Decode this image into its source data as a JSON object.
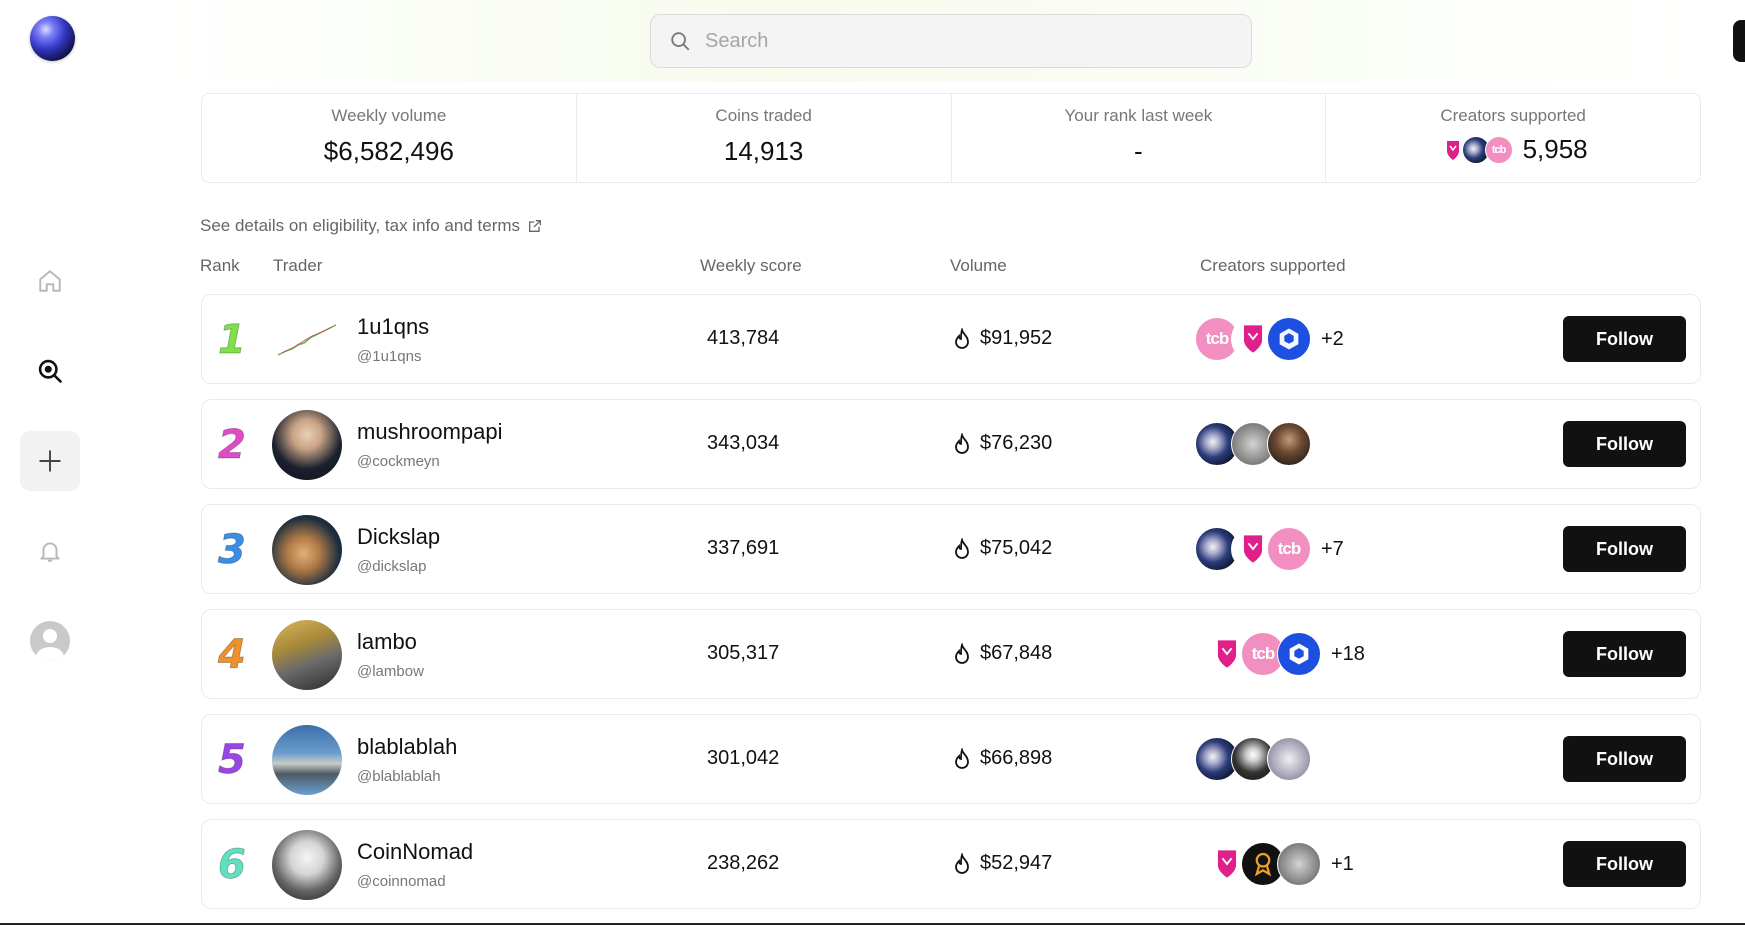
{
  "search": {
    "placeholder": "Search"
  },
  "stats": [
    {
      "label": "Weekly volume",
      "value": "$6,582,496"
    },
    {
      "label": "Coins traded",
      "value": "14,913"
    },
    {
      "label": "Your rank last week",
      "value": "-"
    },
    {
      "label": "Creators supported",
      "value": "5,958"
    }
  ],
  "details_link": "See details on eligibility, tax info and terms",
  "columns": {
    "rank": "Rank",
    "trader": "Trader",
    "score": "Weekly score",
    "volume": "Volume",
    "creators": "Creators supported"
  },
  "rows": [
    {
      "rank": "1",
      "name": "1u1qns",
      "handle": "@1u1qns",
      "score": "413,784",
      "volume": "$91,952",
      "more": "+2",
      "follow": "Follow",
      "rank_color": "#7fe04a"
    },
    {
      "rank": "2",
      "name": "mushroompapi",
      "handle": "@cockmeyn",
      "score": "343,034",
      "volume": "$76,230",
      "more": "",
      "follow": "Follow",
      "rank_color": "#e34ac7"
    },
    {
      "rank": "3",
      "name": "Dickslap",
      "handle": "@dickslap",
      "score": "337,691",
      "volume": "$75,042",
      "more": "+7",
      "follow": "Follow",
      "rank_color": "#3a8ee6"
    },
    {
      "rank": "4",
      "name": "lambo",
      "handle": "@lambow",
      "score": "305,317",
      "volume": "$67,848",
      "more": "+18",
      "follow": "Follow",
      "rank_color": "#f0902a"
    },
    {
      "rank": "5",
      "name": "blablablah",
      "handle": "@blablablah",
      "score": "301,042",
      "volume": "$66,898",
      "more": "",
      "follow": "Follow",
      "rank_color": "#9a46e6"
    },
    {
      "rank": "6",
      "name": "CoinNomad",
      "handle": "@coinnomad",
      "score": "238,262",
      "volume": "$52,947",
      "more": "+1",
      "follow": "Follow",
      "rank_color": "#5fe0c0"
    }
  ]
}
